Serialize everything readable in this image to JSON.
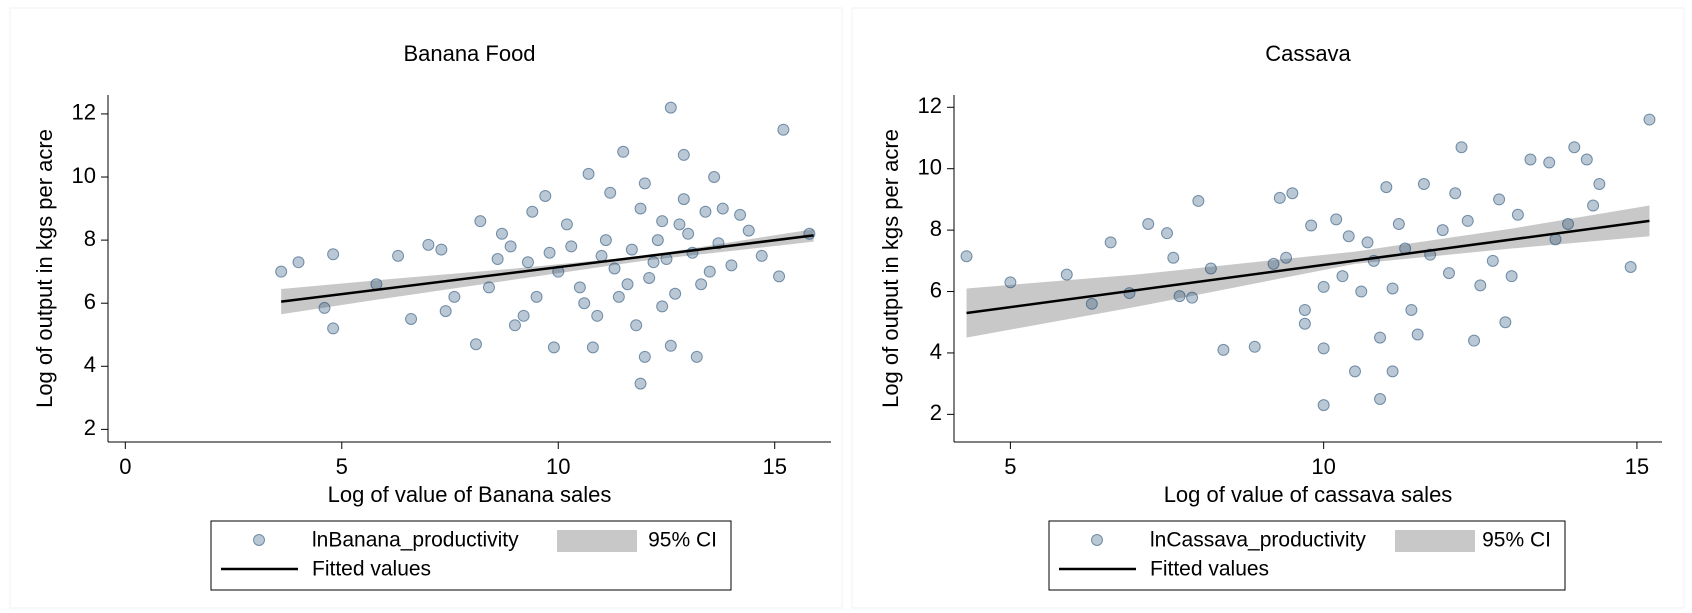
{
  "chart_data": [
    {
      "type": "scatter",
      "title": "Banana Food",
      "xlabel": "Log of value of Banana sales",
      "ylabel": "Log of output in kgs per acre",
      "xlim": [
        -0.4,
        16.3
      ],
      "ylim": [
        1.6,
        12.6
      ],
      "xticks": [
        0,
        5,
        10,
        15
      ],
      "yticks": [
        2,
        4,
        6,
        8,
        10,
        12
      ],
      "series": [
        {
          "name": "lnBanana_productivity",
          "type": "scatter",
          "color": "#1a476f",
          "x": [
            3.6,
            4.0,
            4.6,
            4.8,
            4.8,
            5.8,
            6.3,
            6.6,
            7.0,
            7.3,
            7.4,
            7.6,
            8.1,
            8.2,
            8.4,
            8.7,
            8.9,
            9.0,
            9.2,
            9.4,
            9.5,
            9.7,
            9.9,
            10.0,
            10.2,
            10.5,
            10.7,
            10.8,
            11.0,
            11.2,
            11.5,
            11.6,
            11.8,
            11.9,
            12.0,
            12.2,
            12.4,
            12.6,
            12.6,
            12.9,
            13.0,
            13.2,
            13.5,
            13.6,
            13.8,
            14.2,
            14.7,
            15.1,
            15.2,
            15.8,
            10.3,
            10.6,
            11.1,
            11.3,
            11.7,
            12.1,
            12.3,
            12.5,
            12.7,
            12.8,
            13.1,
            13.3,
            13.4,
            13.7,
            14.0,
            14.4,
            11.9,
            12.0,
            10.9,
            12.4,
            9.8,
            9.3,
            8.6,
            11.4,
            12.9
          ],
          "values": [
            7.0,
            7.3,
            5.85,
            5.2,
            7.55,
            6.6,
            7.5,
            5.5,
            7.85,
            7.7,
            5.75,
            6.2,
            4.7,
            8.6,
            6.5,
            8.2,
            7.8,
            5.3,
            5.6,
            8.9,
            6.2,
            9.4,
            4.6,
            7.0,
            8.5,
            6.5,
            10.1,
            4.6,
            7.5,
            9.5,
            10.8,
            6.6,
            5.3,
            3.45,
            4.3,
            7.3,
            8.6,
            12.2,
            4.65,
            10.7,
            8.2,
            4.3,
            7.0,
            10.0,
            9.0,
            8.8,
            7.5,
            6.85,
            11.5,
            8.2,
            7.8,
            6.0,
            8.0,
            7.1,
            7.7,
            6.8,
            8.0,
            7.4,
            6.3,
            8.5,
            7.6,
            6.6,
            8.9,
            7.9,
            7.2,
            8.3,
            9.0,
            9.8,
            5.6,
            5.9,
            7.6,
            7.3,
            7.4,
            6.2,
            9.3
          ]
        },
        {
          "name": "95% CI",
          "type": "band",
          "color": "#c8c8c8",
          "x": [
            3.6,
            6,
            9,
            12,
            15.9
          ],
          "lower": [
            5.65,
            6.15,
            6.75,
            7.35,
            7.95
          ],
          "upper": [
            6.45,
            6.75,
            7.1,
            7.5,
            8.35
          ]
        },
        {
          "name": "Fitted values",
          "type": "line",
          "color": "#000000",
          "x": [
            3.6,
            15.9
          ],
          "values": [
            6.05,
            8.15
          ]
        }
      ]
    },
    {
      "type": "scatter",
      "title": "Cassava",
      "xlabel": "Log of value of cassava sales",
      "ylabel": "Log of output in kgs per acre",
      "xlim": [
        4.1,
        15.4
      ],
      "ylim": [
        1.1,
        12.4
      ],
      "xticks": [
        5,
        10,
        15
      ],
      "yticks": [
        2,
        4,
        6,
        8,
        10,
        12
      ],
      "series": [
        {
          "name": "lnCassava_productivity",
          "type": "scatter",
          "color": "#1a476f",
          "x": [
            4.3,
            5.0,
            5.9,
            6.3,
            6.6,
            6.9,
            7.2,
            7.5,
            7.6,
            7.7,
            7.9,
            8.0,
            8.2,
            8.4,
            8.9,
            9.2,
            9.3,
            9.5,
            9.7,
            9.7,
            9.8,
            10.0,
            10.0,
            10.0,
            10.2,
            10.3,
            10.5,
            10.6,
            10.7,
            10.9,
            10.9,
            11.0,
            11.1,
            11.1,
            11.3,
            11.4,
            11.5,
            11.6,
            11.9,
            12.1,
            12.2,
            12.4,
            12.5,
            12.7,
            12.9,
            13.1,
            13.3,
            13.6,
            13.7,
            13.9,
            14.0,
            14.2,
            14.3,
            14.4,
            14.9,
            15.2,
            10.8,
            11.7,
            12.0,
            11.2,
            10.4,
            12.3,
            13.0,
            9.4,
            12.8
          ],
          "values": [
            7.15,
            6.3,
            6.55,
            5.6,
            7.6,
            5.95,
            8.2,
            7.9,
            7.1,
            5.85,
            5.8,
            8.95,
            6.75,
            4.1,
            4.2,
            6.9,
            9.05,
            9.2,
            5.4,
            4.95,
            8.15,
            6.15,
            4.15,
            2.3,
            8.35,
            6.5,
            3.4,
            6.0,
            7.6,
            4.5,
            2.5,
            9.4,
            3.4,
            6.1,
            7.4,
            5.4,
            4.6,
            9.5,
            8.0,
            9.2,
            10.7,
            4.4,
            6.2,
            7.0,
            5.0,
            8.5,
            10.3,
            10.2,
            7.7,
            8.2,
            10.7,
            10.3,
            8.8,
            9.5,
            6.8,
            11.6,
            7.0,
            7.2,
            6.6,
            8.2,
            7.8,
            8.3,
            6.5,
            7.1,
            9.0
          ]
        },
        {
          "name": "95% CI",
          "type": "band",
          "color": "#c8c8c8",
          "x": [
            4.3,
            7,
            10.5,
            13,
            15.2
          ],
          "lower": [
            4.5,
            5.5,
            6.9,
            7.4,
            7.8
          ],
          "upper": [
            6.1,
            6.55,
            7.3,
            8.05,
            8.8
          ]
        },
        {
          "name": "Fitted values",
          "type": "line",
          "color": "#000000",
          "x": [
            4.3,
            15.2
          ],
          "values": [
            5.3,
            8.3
          ]
        }
      ]
    }
  ]
}
